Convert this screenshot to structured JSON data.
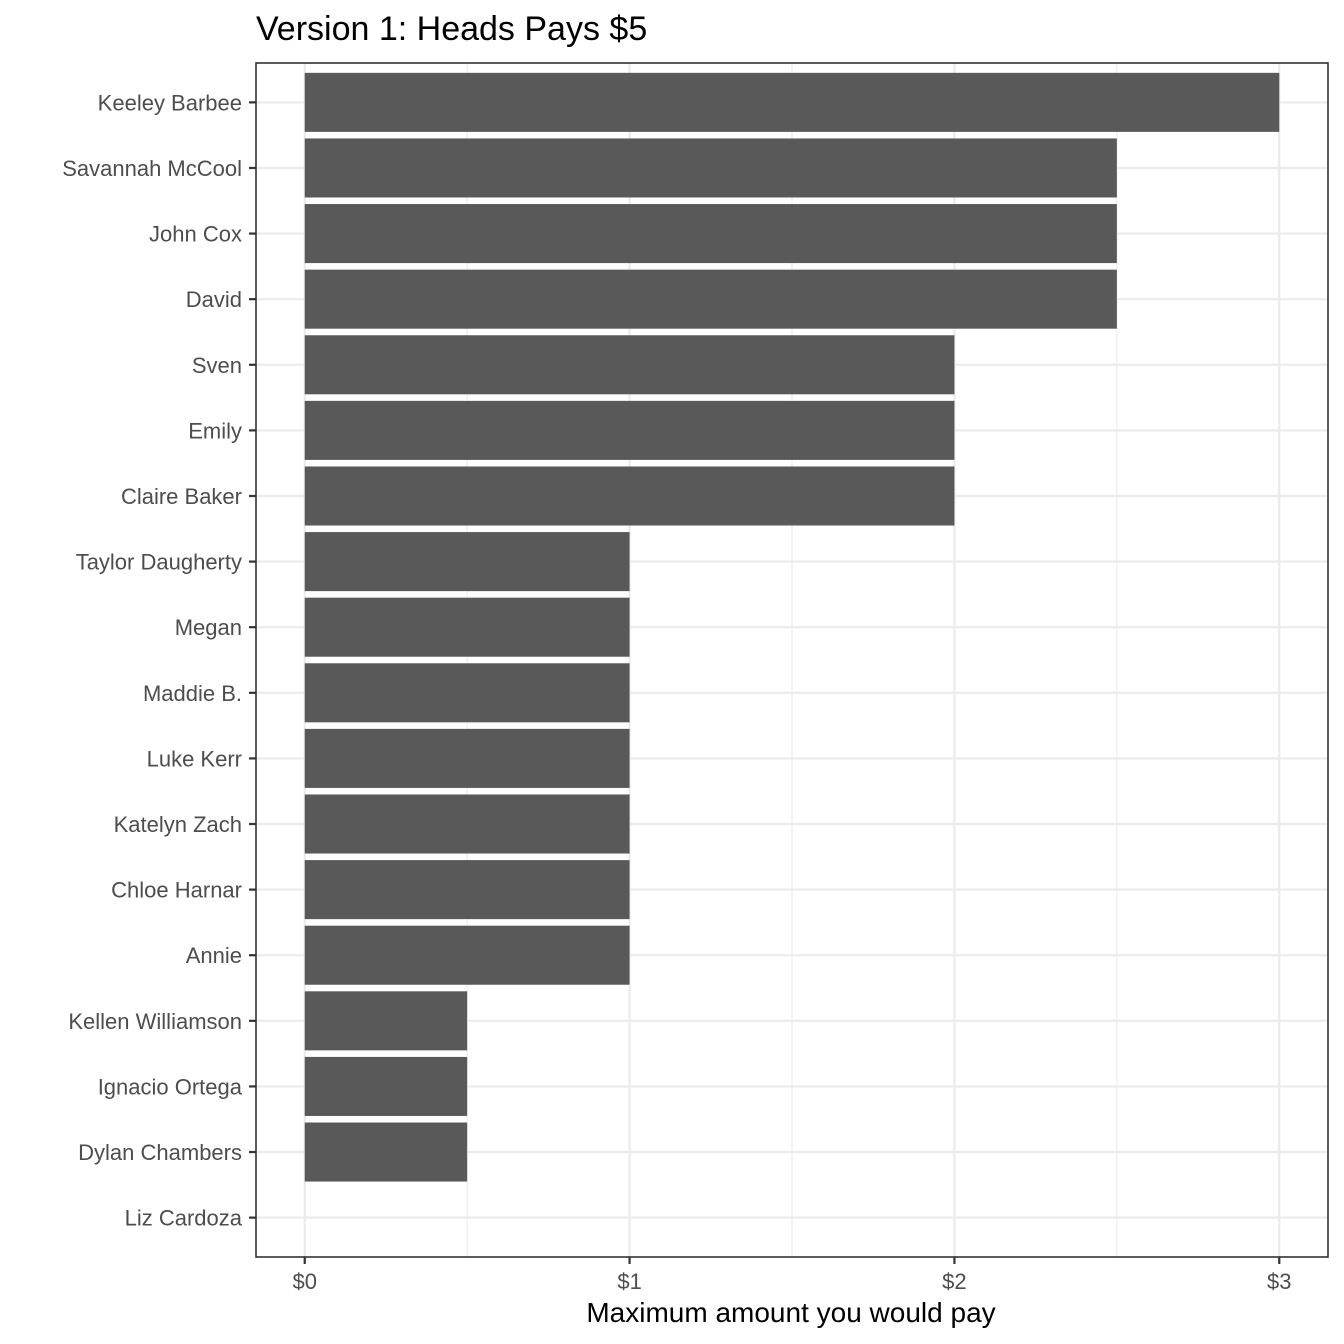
{
  "chart_data": {
    "type": "bar",
    "orientation": "horizontal",
    "title": "Version 1: Heads Pays $5",
    "xlabel": "Maximum amount you would pay",
    "ylabel": "",
    "categories": [
      "Keeley Barbee",
      "Savannah McCool",
      "John Cox",
      "David",
      "Sven",
      "Emily",
      "Claire Baker",
      "Taylor Daugherty",
      "Megan",
      "Maddie B.",
      "Luke Kerr",
      "Katelyn Zach",
      "Chloe Harnar",
      "Annie",
      "Kellen Williamson",
      "Ignacio Ortega",
      "Dylan Chambers",
      "Liz Cardoza"
    ],
    "values": [
      3,
      2.5,
      2.5,
      2.5,
      2,
      2,
      2,
      1,
      1,
      1,
      1,
      1,
      1,
      1,
      0.5,
      0.5,
      0.5,
      0
    ],
    "xlim": [
      -0.15,
      3.15
    ],
    "x_ticks": [
      0,
      1,
      2,
      3
    ],
    "x_tick_labels": [
      "$0",
      "$1",
      "$2",
      "$3"
    ],
    "grid": true,
    "bar_color": "#595959",
    "grid_color": "#ebebeb",
    "border_color": "#333333",
    "legend": "none"
  }
}
